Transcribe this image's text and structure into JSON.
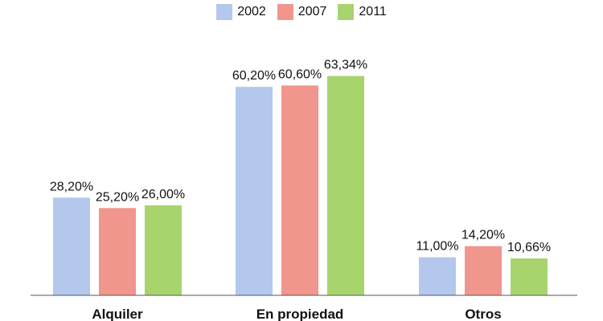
{
  "chart_data": {
    "type": "bar",
    "categories": [
      "Alquiler",
      "En propiedad",
      "Otros"
    ],
    "series": [
      {
        "name": "2002",
        "color": "#b3c8ec",
        "values": [
          28.2,
          60.2,
          11.0
        ],
        "labels": [
          "28,20%",
          "60,20%",
          "11,00%"
        ]
      },
      {
        "name": "2007",
        "color": "#f0968c",
        "values": [
          25.2,
          60.6,
          14.2
        ],
        "labels": [
          "25,20%",
          "60,60%",
          "14,20%"
        ]
      },
      {
        "name": "2011",
        "color": "#a8d46e",
        "values": [
          26.0,
          63.34,
          10.66
        ],
        "labels": [
          "26,00%",
          "63,34%",
          "10,66%"
        ]
      }
    ],
    "ylim": [
      0,
      70
    ],
    "legend": "top-center",
    "grid": false
  }
}
